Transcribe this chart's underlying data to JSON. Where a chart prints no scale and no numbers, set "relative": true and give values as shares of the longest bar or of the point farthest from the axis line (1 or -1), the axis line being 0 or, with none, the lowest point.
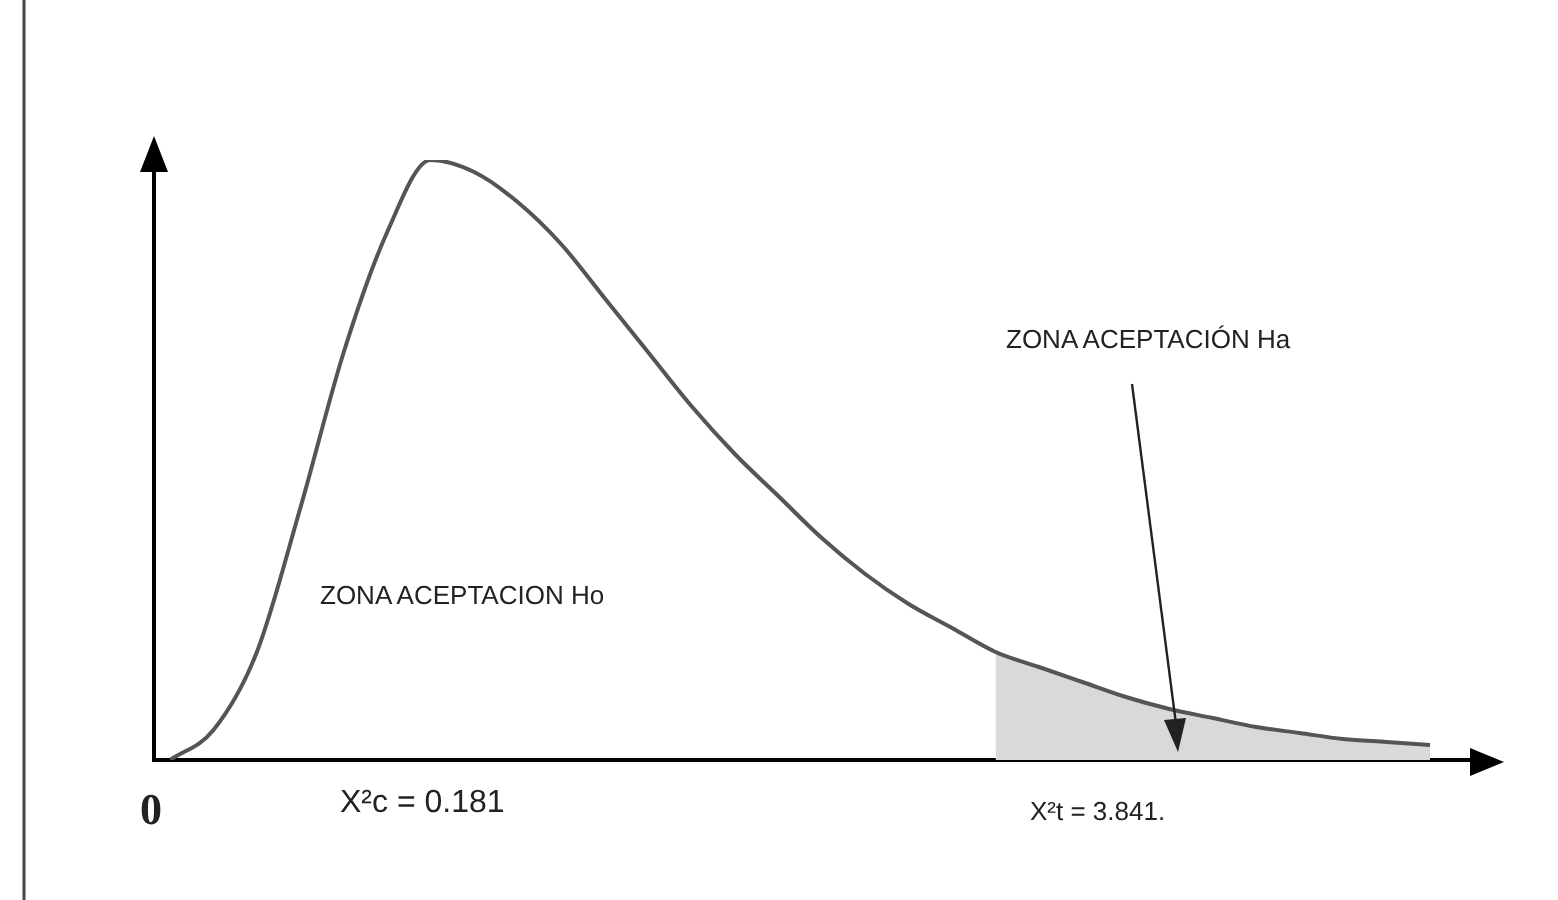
{
  "chart_data": {
    "type": "line",
    "relative": true,
    "categories": [
      null,
      null,
      null,
      null,
      null,
      null,
      null,
      null,
      null,
      null,
      null,
      null,
      null,
      null,
      null,
      null,
      null,
      null,
      null,
      null,
      null,
      null,
      null,
      null,
      null,
      null,
      null,
      null,
      null,
      null
    ],
    "series": [
      {
        "type": "line",
        "color": "#555555",
        "values": [
          0,
          0.05,
          0.18,
          0.42,
          0.68,
          0.88,
          1,
          0.98,
          0.93,
          0.86,
          0.77,
          0.68,
          0.59,
          0.51,
          0.44,
          0.37,
          0.31,
          0.26,
          0.22,
          0.18,
          0.155,
          0.13,
          0.105,
          0.085,
          0.07,
          0.055,
          0.045,
          0.035,
          0.03,
          0.025
        ]
      },
      {
        "type": "area",
        "color": "#d9d9d9",
        "values": [
          null,
          null,
          null,
          null,
          null,
          null,
          null,
          null,
          null,
          null,
          null,
          null,
          null,
          null,
          null,
          null,
          null,
          null,
          null,
          0.18,
          0.155,
          0.13,
          0.105,
          0.085,
          0.07,
          0.055,
          0.045,
          0.035,
          0.03,
          0.025
        ]
      }
    ],
    "annotations": [
      "ZONA ACEPTACIÓN Ha",
      "ZONA ACEPTACION Ho",
      "X²c = 0.181",
      "X²t = 3.841.",
      "0"
    ]
  }
}
